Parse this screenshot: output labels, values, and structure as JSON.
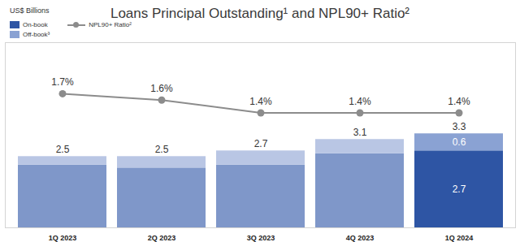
{
  "chart_data": {
    "type": "bar",
    "title": "Loans Principal Outstanding¹ and NPL90+ Ratio²",
    "ylabel": "US$ Billions",
    "categories": [
      "1Q 2023",
      "2Q 2023",
      "3Q 2023",
      "4Q 2023",
      "1Q 2024"
    ],
    "stacked": true,
    "data_labels": true,
    "legend": "top-left",
    "tick_labels": "x",
    "ylim": [
      0,
      6.5
    ],
    "y2lim": [
      -0.4,
      2.5
    ],
    "totals": [
      2.5,
      2.5,
      2.7,
      3.1,
      3.3
    ],
    "series": [
      {
        "name": "On-book",
        "color": "#2e55a4",
        "colors": [
          "#7f97c9",
          "#7f97c9",
          "#7f97c9",
          "#7f97c9",
          "#2e55a4"
        ],
        "values": [
          2.2,
          2.1,
          2.2,
          2.6,
          2.7
        ],
        "value_labels": [
          null,
          null,
          null,
          null,
          "2.7"
        ]
      },
      {
        "name": "Off-book³",
        "color": "#8aa2d3",
        "colors": [
          "#b9c6e4",
          "#b9c6e4",
          "#b9c6e4",
          "#b9c6e4",
          "#8aa2d3"
        ],
        "values": [
          0.3,
          0.4,
          0.5,
          0.5,
          0.6
        ],
        "value_labels": [
          null,
          null,
          null,
          null,
          "0.6"
        ]
      },
      {
        "name": "NPL90+ Ratio²",
        "type": "line",
        "axis": "y2",
        "color": "#8c8c8c",
        "marker": "circle",
        "values": [
          1.7,
          1.6,
          1.4,
          1.4,
          1.4
        ],
        "value_labels": [
          "1.7%",
          "1.6%",
          "1.4%",
          "1.4%",
          "1.4%"
        ]
      }
    ]
  }
}
